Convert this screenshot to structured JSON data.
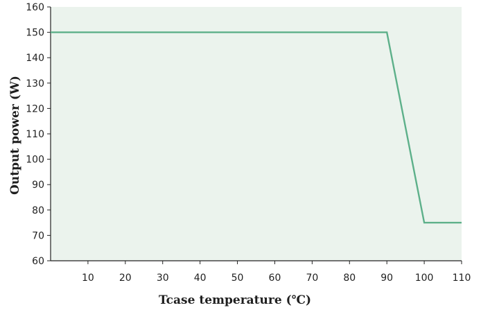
{
  "chart_data": {
    "type": "line",
    "xlabel": "Tcase temperature (℃)",
    "ylabel": "Output power (W)",
    "xlim": [
      0,
      110
    ],
    "ylim": [
      60,
      160
    ],
    "x_ticks": [
      10,
      20,
      30,
      40,
      50,
      60,
      70,
      80,
      90,
      100,
      110
    ],
    "y_ticks": [
      60,
      70,
      80,
      90,
      100,
      110,
      120,
      130,
      140,
      150,
      160
    ],
    "grid": false,
    "series": [
      {
        "x": [
          0,
          90,
          100,
          110
        ],
        "y": [
          150,
          150,
          75,
          75
        ]
      }
    ],
    "colors": {
      "plot_background": "#ebf3ed",
      "line": "#5db08a",
      "axis": "#222222"
    }
  }
}
